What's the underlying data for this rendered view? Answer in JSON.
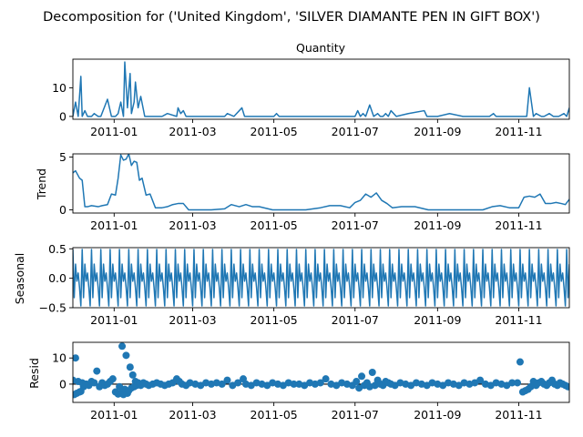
{
  "figure": {
    "suptitle": "Decomposition for ('United Kingdom', 'SILVER DIAMANTE PEN IN GIFT BOX')"
  },
  "colors": {
    "series": "#1f77b4",
    "zero_line": "#000000",
    "axes": "#000000",
    "background": "#ffffff"
  },
  "chart_data": [
    {
      "type": "line",
      "title": "Quantity",
      "ylabel": "",
      "xlim": [
        "2010-12-01",
        "2011-12-09"
      ],
      "ylim": [
        -1,
        20
      ],
      "y_ticks": [
        0,
        10
      ],
      "x_ticks": [
        "2011-01-01",
        "2011-03-01",
        "2011-05-01",
        "2011-07-01",
        "2011-09-01",
        "2011-11-01"
      ],
      "x_tick_labels": [
        "2011-01",
        "2011-03",
        "2011-05",
        "2011-07",
        "2011-09",
        "2011-11"
      ],
      "grid": false,
      "x": [
        "2010-12-01",
        "2010-12-03",
        "2010-12-05",
        "2010-12-07",
        "2010-12-08",
        "2010-12-10",
        "2010-12-12",
        "2010-12-15",
        "2010-12-17",
        "2010-12-20",
        "2010-12-22",
        "2010-12-27",
        "2010-12-30",
        "2011-01-02",
        "2011-01-04",
        "2011-01-06",
        "2011-01-08",
        "2011-01-09",
        "2011-01-11",
        "2011-01-13",
        "2011-01-14",
        "2011-01-16",
        "2011-01-17",
        "2011-01-19",
        "2011-01-21",
        "2011-01-24",
        "2011-01-27",
        "2011-02-01",
        "2011-02-06",
        "2011-02-10",
        "2011-02-17",
        "2011-02-18",
        "2011-02-20",
        "2011-02-22",
        "2011-02-24",
        "2011-03-01",
        "2011-03-10",
        "2011-03-20",
        "2011-03-25",
        "2011-03-27",
        "2011-04-01",
        "2011-04-07",
        "2011-04-09",
        "2011-04-10",
        "2011-04-12",
        "2011-04-25",
        "2011-05-01",
        "2011-05-03",
        "2011-05-05",
        "2011-05-20",
        "2011-06-01",
        "2011-06-08",
        "2011-06-10",
        "2011-06-15",
        "2011-06-19",
        "2011-06-21",
        "2011-06-27",
        "2011-07-01",
        "2011-07-03",
        "2011-07-05",
        "2011-07-07",
        "2011-07-09",
        "2011-07-12",
        "2011-07-15",
        "2011-07-18",
        "2011-07-20",
        "2011-07-22",
        "2011-07-24",
        "2011-07-26",
        "2011-07-28",
        "2011-08-01",
        "2011-08-10",
        "2011-08-22",
        "2011-08-24",
        "2011-08-26",
        "2011-09-01",
        "2011-09-10",
        "2011-09-20",
        "2011-10-01",
        "2011-10-10",
        "2011-10-13",
        "2011-10-15",
        "2011-10-20",
        "2011-10-25",
        "2011-11-01",
        "2011-11-03",
        "2011-11-05",
        "2011-11-07",
        "2011-11-09",
        "2011-11-12",
        "2011-11-14",
        "2011-11-18",
        "2011-11-20",
        "2011-11-24",
        "2011-11-27",
        "2011-12-01",
        "2011-12-05",
        "2011-12-07",
        "2011-12-09"
      ],
      "values": [
        0,
        5,
        0,
        14,
        0,
        2,
        0,
        0,
        1,
        0,
        0,
        6,
        0,
        0,
        1,
        5,
        0,
        19,
        3,
        15,
        1,
        5,
        12,
        3,
        7,
        0,
        0,
        0,
        0,
        1,
        0,
        3,
        1,
        2,
        0,
        0,
        0,
        0,
        0,
        1,
        0,
        3,
        0,
        0,
        0,
        0,
        0,
        1,
        0,
        0,
        0,
        0,
        0,
        0,
        0,
        0,
        0,
        0,
        2,
        0,
        1,
        0,
        4,
        0,
        1,
        0,
        0,
        1,
        0,
        2,
        0,
        1,
        2,
        0,
        0,
        0,
        1,
        0,
        0,
        0,
        1,
        0,
        0,
        0,
        0,
        0,
        0,
        0,
        10,
        0,
        1,
        0,
        0,
        1,
        0,
        0,
        1,
        0,
        3
      ]
    },
    {
      "type": "line",
      "title": "",
      "ylabel": "Trend",
      "xlim": [
        "2010-12-01",
        "2011-12-09"
      ],
      "ylim": [
        -0.3,
        5.3
      ],
      "y_ticks": [
        0,
        5
      ],
      "x_ticks": [
        "2011-01-01",
        "2011-03-01",
        "2011-05-01",
        "2011-07-01",
        "2011-09-01",
        "2011-11-01"
      ],
      "x_tick_labels": [
        "2011-01",
        "2011-03",
        "2011-05",
        "2011-07",
        "2011-09",
        "2011-11"
      ],
      "grid": false,
      "x": [
        "2010-12-01",
        "2010-12-03",
        "2010-12-06",
        "2010-12-08",
        "2010-12-10",
        "2010-12-12",
        "2010-12-15",
        "2010-12-20",
        "2010-12-23",
        "2010-12-27",
        "2010-12-30",
        "2011-01-02",
        "2011-01-04",
        "2011-01-06",
        "2011-01-08",
        "2011-01-10",
        "2011-01-12",
        "2011-01-14",
        "2011-01-16",
        "2011-01-18",
        "2011-01-20",
        "2011-01-22",
        "2011-01-25",
        "2011-01-28",
        "2011-02-01",
        "2011-02-06",
        "2011-02-10",
        "2011-02-14",
        "2011-02-18",
        "2011-02-22",
        "2011-02-26",
        "2011-03-05",
        "2011-03-15",
        "2011-03-25",
        "2011-03-30",
        "2011-04-05",
        "2011-04-10",
        "2011-04-15",
        "2011-04-20",
        "2011-04-30",
        "2011-05-10",
        "2011-05-25",
        "2011-06-05",
        "2011-06-12",
        "2011-06-20",
        "2011-06-27",
        "2011-07-01",
        "2011-07-05",
        "2011-07-09",
        "2011-07-13",
        "2011-07-17",
        "2011-07-21",
        "2011-07-25",
        "2011-07-29",
        "2011-08-05",
        "2011-08-15",
        "2011-08-25",
        "2011-09-05",
        "2011-09-15",
        "2011-09-25",
        "2011-10-05",
        "2011-10-12",
        "2011-10-18",
        "2011-10-25",
        "2011-11-01",
        "2011-11-05",
        "2011-11-09",
        "2011-11-13",
        "2011-11-17",
        "2011-11-21",
        "2011-11-25",
        "2011-11-29",
        "2011-12-03",
        "2011-12-06",
        "2011-12-09"
      ],
      "values": [
        3.5,
        3.7,
        3.0,
        2.8,
        0.3,
        0.3,
        0.4,
        0.3,
        0.4,
        0.5,
        1.5,
        1.4,
        3.0,
        5.2,
        4.7,
        4.8,
        5.3,
        4.2,
        4.6,
        4.5,
        2.8,
        3.0,
        1.4,
        1.5,
        0.2,
        0.2,
        0.3,
        0.5,
        0.6,
        0.6,
        0.0,
        0.0,
        0.0,
        0.1,
        0.5,
        0.3,
        0.5,
        0.3,
        0.3,
        0.0,
        0.0,
        0.0,
        0.2,
        0.4,
        0.4,
        0.2,
        0.7,
        0.9,
        1.5,
        1.2,
        1.6,
        0.9,
        0.6,
        0.2,
        0.3,
        0.3,
        0.0,
        0.0,
        0.0,
        0.0,
        0.0,
        0.3,
        0.4,
        0.2,
        0.2,
        1.2,
        1.3,
        1.2,
        1.5,
        0.6,
        0.6,
        0.7,
        0.6,
        0.5,
        1.0
      ]
    },
    {
      "type": "line",
      "title": "",
      "ylabel": "Seasonal",
      "xlim": [
        "2010-12-01",
        "2011-12-09"
      ],
      "ylim": [
        -0.5,
        0.52
      ],
      "y_ticks": [
        -0.5,
        0.0,
        0.5
      ],
      "y_tick_labels": [
        "−0.5",
        "0.0",
        "0.5"
      ],
      "x_ticks": [
        "2011-01-01",
        "2011-03-01",
        "2011-05-01",
        "2011-07-01",
        "2011-09-01",
        "2011-11-01"
      ],
      "x_tick_labels": [
        "2011-01",
        "2011-03",
        "2011-05",
        "2011-07",
        "2011-09",
        "2011-11"
      ],
      "grid": false,
      "period_days": 7,
      "weekly_pattern": [
        0.49,
        -0.33,
        0.24,
        -0.05,
        0.09,
        -0.16,
        -0.47
      ],
      "x": [
        "2010-12-01",
        "2010-12-02",
        "2010-12-03",
        "2010-12-04",
        "2010-12-05",
        "2010-12-06",
        "2010-12-07"
      ],
      "values": [
        0.49,
        -0.33,
        0.24,
        -0.05,
        0.09,
        -0.16,
        -0.47
      ]
    },
    {
      "type": "scatter",
      "title": "",
      "ylabel": "Resid",
      "xlim": [
        "2010-12-01",
        "2011-12-09"
      ],
      "ylim": [
        -7,
        16
      ],
      "y_ticks": [
        0,
        10
      ],
      "x_ticks": [
        "2011-01-01",
        "2011-03-01",
        "2011-05-01",
        "2011-07-01",
        "2011-09-01",
        "2011-11-01"
      ],
      "x_tick_labels": [
        "2011-01",
        "2011-03",
        "2011-05",
        "2011-07",
        "2011-09",
        "2011-11"
      ],
      "grid": false,
      "zero_line": true,
      "x": [
        "2010-12-01",
        "2010-12-02",
        "2010-12-03",
        "2010-12-04",
        "2010-12-05",
        "2010-12-06",
        "2010-12-07",
        "2010-12-08",
        "2010-12-09",
        "2010-12-11",
        "2010-12-13",
        "2010-12-15",
        "2010-12-17",
        "2010-12-19",
        "2010-12-21",
        "2010-12-23",
        "2010-12-25",
        "2010-12-27",
        "2010-12-29",
        "2010-12-31",
        "2011-01-02",
        "2011-01-04",
        "2011-01-05",
        "2011-01-06",
        "2011-01-07",
        "2011-01-08",
        "2011-01-09",
        "2011-01-10",
        "2011-01-11",
        "2011-01-12",
        "2011-01-13",
        "2011-01-14",
        "2011-01-15",
        "2011-01-16",
        "2011-01-17",
        "2011-01-18",
        "2011-01-19",
        "2011-01-20",
        "2011-01-21",
        "2011-01-23",
        "2011-01-25",
        "2011-01-27",
        "2011-01-30",
        "2011-02-02",
        "2011-02-05",
        "2011-02-08",
        "2011-02-11",
        "2011-02-14",
        "2011-02-17",
        "2011-02-19",
        "2011-02-21",
        "2011-02-24",
        "2011-02-27",
        "2011-03-03",
        "2011-03-07",
        "2011-03-11",
        "2011-03-15",
        "2011-03-19",
        "2011-03-23",
        "2011-03-27",
        "2011-03-31",
        "2011-04-04",
        "2011-04-08",
        "2011-04-10",
        "2011-04-14",
        "2011-04-18",
        "2011-04-22",
        "2011-04-26",
        "2011-04-30",
        "2011-05-04",
        "2011-05-08",
        "2011-05-12",
        "2011-05-16",
        "2011-05-20",
        "2011-05-24",
        "2011-05-28",
        "2011-06-01",
        "2011-06-05",
        "2011-06-09",
        "2011-06-13",
        "2011-06-17",
        "2011-06-21",
        "2011-06-25",
        "2011-06-29",
        "2011-07-02",
        "2011-07-04",
        "2011-07-06",
        "2011-07-08",
        "2011-07-10",
        "2011-07-12",
        "2011-07-14",
        "2011-07-16",
        "2011-07-18",
        "2011-07-20",
        "2011-07-22",
        "2011-07-24",
        "2011-07-26",
        "2011-07-28",
        "2011-07-31",
        "2011-08-04",
        "2011-08-08",
        "2011-08-12",
        "2011-08-16",
        "2011-08-20",
        "2011-08-24",
        "2011-08-28",
        "2011-09-01",
        "2011-09-05",
        "2011-09-09",
        "2011-09-13",
        "2011-09-17",
        "2011-09-21",
        "2011-09-25",
        "2011-09-29",
        "2011-10-03",
        "2011-10-07",
        "2011-10-11",
        "2011-10-15",
        "2011-10-19",
        "2011-10-23",
        "2011-10-27",
        "2011-10-31",
        "2011-11-02",
        "2011-11-04",
        "2011-11-06",
        "2011-11-08",
        "2011-11-10",
        "2011-11-12",
        "2011-11-14",
        "2011-11-16",
        "2011-11-18",
        "2011-11-20",
        "2011-11-22",
        "2011-11-24",
        "2011-11-26",
        "2011-11-28",
        "2011-11-30",
        "2011-12-02",
        "2011-12-04",
        "2011-12-06",
        "2011-12-08"
      ],
      "values": [
        1.5,
        -4.0,
        10.0,
        -3.5,
        1.0,
        -3.0,
        -2.8,
        0.5,
        -1.0,
        0.0,
        -0.5,
        1.0,
        0.5,
        5.0,
        -1.0,
        0.5,
        -0.5,
        0.0,
        1.0,
        2.0,
        -3.0,
        -3.8,
        -1.0,
        -3.5,
        14.5,
        -4.0,
        -2.0,
        11.0,
        -3.5,
        -2.5,
        6.5,
        -1.5,
        3.5,
        -1.0,
        1.0,
        -0.5,
        0.5,
        0.0,
        -0.5,
        0.5,
        0.0,
        -0.5,
        0.0,
        0.5,
        0.0,
        -0.5,
        0.0,
        0.5,
        2.0,
        1.0,
        0.0,
        -0.5,
        0.5,
        0.0,
        -0.5,
        0.5,
        0.0,
        0.5,
        0.0,
        1.5,
        -0.5,
        0.5,
        2.0,
        0.0,
        -0.5,
        0.5,
        0.0,
        -0.5,
        0.5,
        0.0,
        -0.5,
        0.5,
        0.0,
        0.0,
        -0.5,
        0.5,
        0.0,
        0.5,
        2.0,
        0.0,
        -0.5,
        0.5,
        0.0,
        -0.5,
        1.0,
        -1.5,
        3.0,
        -0.5,
        0.5,
        -1.0,
        4.5,
        -0.5,
        1.5,
        0.0,
        -0.5,
        1.0,
        0.5,
        0.0,
        -0.5,
        0.5,
        0.0,
        -0.5,
        0.5,
        0.0,
        -0.5,
        0.5,
        0.0,
        -0.5,
        0.5,
        0.0,
        -0.5,
        0.5,
        0.0,
        0.5,
        1.5,
        0.0,
        -0.5,
        0.5,
        0.0,
        -0.5,
        0.5,
        0.5,
        8.5,
        -3.0,
        -2.5,
        -2.0,
        -1.0,
        1.0,
        -0.5,
        0.5,
        1.0,
        0.0,
        -0.5,
        0.5,
        1.5,
        0.0,
        -0.5,
        0.5,
        0.0,
        -0.5,
        -1.0
      ]
    }
  ]
}
